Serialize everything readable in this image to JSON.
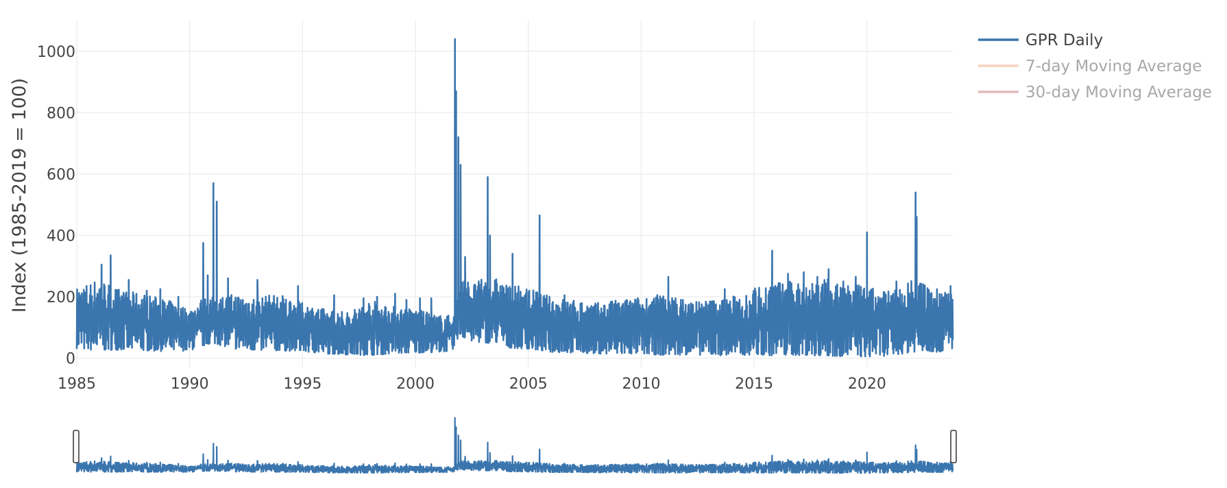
{
  "chart_data": {
    "type": "line",
    "title": "",
    "xlabel": "",
    "ylabel": "Index (1985-2019 = 100)",
    "xlim": [
      1985,
      2023.8
    ],
    "ylim": [
      -30,
      1100
    ],
    "x_ticks": [
      "1985",
      "1990",
      "1995",
      "2000",
      "2005",
      "2010",
      "2015",
      "2020"
    ],
    "y_ticks": [
      "0",
      "200",
      "400",
      "600",
      "800",
      "1000"
    ],
    "grid": true,
    "legend_position": "top-right",
    "rangeslider": true,
    "series": [
      {
        "name": "GPR Daily",
        "color": "#3a75ae",
        "visible": true,
        "low": [
          [
            1985,
            30
          ],
          [
            1986,
            25
          ],
          [
            1987,
            28
          ],
          [
            1988,
            25
          ],
          [
            1989,
            22
          ],
          [
            1990,
            25
          ],
          [
            1990.6,
            40
          ],
          [
            1991,
            50
          ],
          [
            1992,
            30
          ],
          [
            1993,
            25
          ],
          [
            1994,
            25
          ],
          [
            1995,
            22
          ],
          [
            1996,
            15
          ],
          [
            1997,
            12
          ],
          [
            1998,
            10
          ],
          [
            1999,
            15
          ],
          [
            2000,
            18
          ],
          [
            2001,
            20
          ],
          [
            2001.7,
            25
          ],
          [
            2001.8,
            60
          ],
          [
            2002,
            70
          ],
          [
            2002.5,
            55
          ],
          [
            2003,
            50
          ],
          [
            2003.6,
            50
          ],
          [
            2004,
            35
          ],
          [
            2005,
            30
          ],
          [
            2006,
            20
          ],
          [
            2007,
            18
          ],
          [
            2008,
            15
          ],
          [
            2009,
            12
          ],
          [
            2010,
            15
          ],
          [
            2011,
            10
          ],
          [
            2012,
            12
          ],
          [
            2013,
            10
          ],
          [
            2014,
            8
          ],
          [
            2015,
            12
          ],
          [
            2016,
            8
          ],
          [
            2017,
            10
          ],
          [
            2018,
            8
          ],
          [
            2019,
            6
          ],
          [
            2020,
            5
          ],
          [
            2021,
            8
          ],
          [
            2022,
            20
          ],
          [
            2022.5,
            25
          ],
          [
            2023,
            20
          ],
          [
            2023.8,
            25
          ]
        ],
        "high": [
          [
            1985,
            230
          ],
          [
            1986,
            260
          ],
          [
            1987,
            220
          ],
          [
            1988,
            210
          ],
          [
            1989,
            190
          ],
          [
            1990,
            160
          ],
          [
            1990.6,
            200
          ],
          [
            1991.3,
            200
          ],
          [
            1992,
            210
          ],
          [
            1993,
            200
          ],
          [
            1994,
            210
          ],
          [
            1995,
            180
          ],
          [
            1996,
            160
          ],
          [
            1997,
            150
          ],
          [
            1998,
            190
          ],
          [
            1999,
            170
          ],
          [
            2000,
            160
          ],
          [
            2001,
            140
          ],
          [
            2001.7,
            140
          ],
          [
            2002,
            280
          ],
          [
            2002.5,
            240
          ],
          [
            2003,
            260
          ],
          [
            2003.6,
            260
          ],
          [
            2004,
            240
          ],
          [
            2005,
            230
          ],
          [
            2006,
            200
          ],
          [
            2007,
            190
          ],
          [
            2008,
            180
          ],
          [
            2009,
            190
          ],
          [
            2010,
            200
          ],
          [
            2011,
            210
          ],
          [
            2012,
            190
          ],
          [
            2013,
            190
          ],
          [
            2014,
            200
          ],
          [
            2015,
            230
          ],
          [
            2016,
            250
          ],
          [
            2017,
            250
          ],
          [
            2018,
            260
          ],
          [
            2019,
            250
          ],
          [
            2020,
            230
          ],
          [
            2021,
            220
          ],
          [
            2022,
            260
          ],
          [
            2022.5,
            240
          ],
          [
            2023,
            230
          ],
          [
            2023.8,
            235
          ]
        ],
        "spikes": [
          [
            1986.1,
            305
          ],
          [
            1986.5,
            335
          ],
          [
            1987.3,
            255
          ],
          [
            1988.1,
            220
          ],
          [
            1988.7,
            225
          ],
          [
            1989.5,
            200
          ],
          [
            1990.6,
            375
          ],
          [
            1990.8,
            270
          ],
          [
            1991.05,
            570
          ],
          [
            1991.2,
            510
          ],
          [
            1991.7,
            260
          ],
          [
            1993.0,
            255
          ],
          [
            1994.8,
            235
          ],
          [
            1996.4,
            205
          ],
          [
            1997.7,
            195
          ],
          [
            1998.3,
            200
          ],
          [
            1999.1,
            210
          ],
          [
            1999.6,
            190
          ],
          [
            2000.2,
            195
          ],
          [
            2000.7,
            195
          ],
          [
            2001.75,
            1040
          ],
          [
            2001.8,
            870
          ],
          [
            2001.9,
            720
          ],
          [
            2002.0,
            630
          ],
          [
            2002.2,
            330
          ],
          [
            2003.2,
            590
          ],
          [
            2003.3,
            400
          ],
          [
            2004.3,
            340
          ],
          [
            2005.5,
            465
          ],
          [
            2006.6,
            205
          ],
          [
            2011.2,
            265
          ],
          [
            2013.7,
            225
          ],
          [
            2015.8,
            350
          ],
          [
            2016.5,
            275
          ],
          [
            2017.2,
            280
          ],
          [
            2017.8,
            265
          ],
          [
            2018.3,
            290
          ],
          [
            2018.9,
            225
          ],
          [
            2019.5,
            265
          ],
          [
            2020.0,
            410
          ],
          [
            2021.3,
            250
          ],
          [
            2022.15,
            540
          ],
          [
            2022.2,
            460
          ],
          [
            2022.5,
            240
          ],
          [
            2023.7,
            235
          ]
        ]
      },
      {
        "name": "7-day Moving Average",
        "color": "#f3b890",
        "visible": false
      },
      {
        "name": "30-day Moving Average",
        "color": "#d18d91",
        "visible": false
      }
    ]
  }
}
